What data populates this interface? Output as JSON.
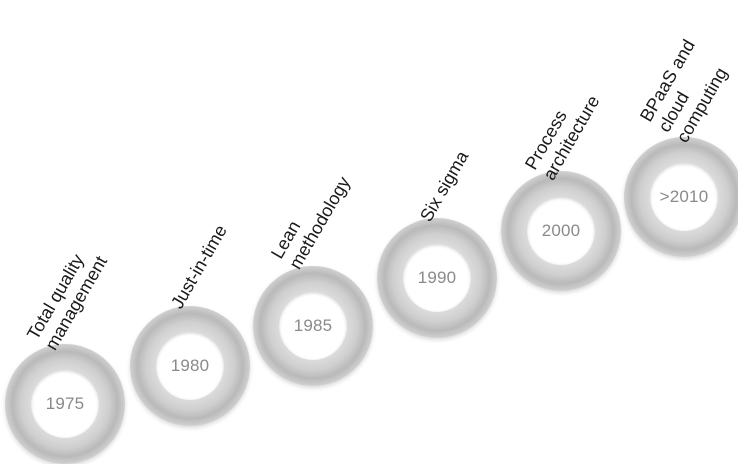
{
  "steps": [
    {
      "year": "1975",
      "label_lines": [
        "Total quality",
        "management"
      ]
    },
    {
      "year": "1980",
      "label_lines": [
        "Just-in-time"
      ]
    },
    {
      "year": "1985",
      "label_lines": [
        "Lean",
        "methodology"
      ]
    },
    {
      "year": "1990",
      "label_lines": [
        "Six sigma"
      ]
    },
    {
      "year": "2000",
      "label_lines": [
        "Process",
        "architecture"
      ]
    },
    {
      "year": ">2010",
      "label_lines": [
        "BPaaS and",
        "cloud",
        "computing"
      ]
    }
  ]
}
